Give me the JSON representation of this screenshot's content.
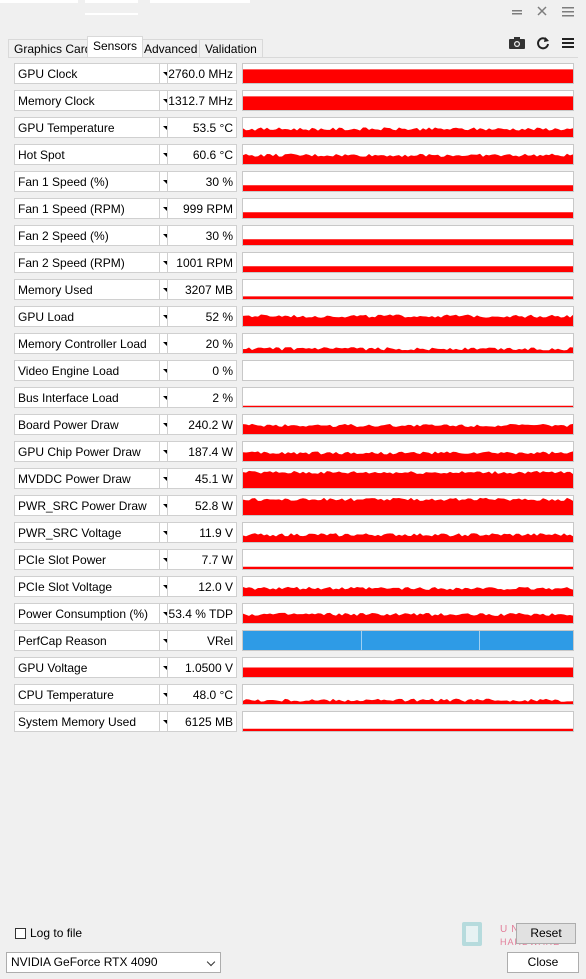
{
  "window": {
    "icons": [
      "minimize-icon",
      "close-icon",
      "menu-icon"
    ]
  },
  "tabs": [
    {
      "label": "Graphics Card",
      "active": false
    },
    {
      "label": "Sensors",
      "active": true
    },
    {
      "label": "Advanced",
      "active": false
    },
    {
      "label": "Validation",
      "active": false
    }
  ],
  "toolbar": {
    "icons": [
      "camera-icon",
      "refresh-icon",
      "hamburger-menu-icon"
    ]
  },
  "colors": {
    "graph_line": "#ff0000",
    "perfcap_fill": "#2e9be6"
  },
  "sensors": [
    {
      "name": "GPU Clock",
      "value": "2760.0 MHz",
      "level": 0.72,
      "style": "solid"
    },
    {
      "name": "Memory Clock",
      "value": "1312.7 MHz",
      "level": 0.72,
      "style": "solid"
    },
    {
      "name": "GPU Temperature",
      "value": "53.5 °C",
      "level": 0.42,
      "style": "noisy"
    },
    {
      "name": "Hot Spot",
      "value": "60.6 °C",
      "level": 0.46,
      "style": "noisy"
    },
    {
      "name": "Fan 1 Speed (%)",
      "value": "30 %",
      "level": 0.3,
      "style": "solid"
    },
    {
      "name": "Fan 1 Speed (RPM)",
      "value": "999 RPM",
      "level": 0.3,
      "style": "solid"
    },
    {
      "name": "Fan 2 Speed (%)",
      "value": "30 %",
      "level": 0.3,
      "style": "solid"
    },
    {
      "name": "Fan 2 Speed (RPM)",
      "value": "1001 RPM",
      "level": 0.3,
      "style": "solid"
    },
    {
      "name": "Memory Used",
      "value": "3207 MB",
      "level": 0.14,
      "style": "solid"
    },
    {
      "name": "GPU Load",
      "value": "52 %",
      "level": 0.52,
      "style": "noisy"
    },
    {
      "name": "Memory Controller Load",
      "value": "20 %",
      "level": 0.22,
      "style": "noisy"
    },
    {
      "name": "Video Engine Load",
      "value": "0 %",
      "level": 0.0,
      "style": "empty"
    },
    {
      "name": "Bus Interface Load",
      "value": "2 %",
      "level": 0.03,
      "style": "flat"
    },
    {
      "name": "Board Power Draw",
      "value": "240.2 W",
      "level": 0.45,
      "style": "noisy"
    },
    {
      "name": "GPU Chip Power Draw",
      "value": "187.4 W",
      "level": 0.42,
      "style": "noisy"
    },
    {
      "name": "MVDDC Power Draw",
      "value": "45.1 W",
      "level": 0.82,
      "style": "noisy"
    },
    {
      "name": "PWR_SRC Power Draw",
      "value": "52.8 W",
      "level": 0.82,
      "style": "noisy"
    },
    {
      "name": "PWR_SRC Voltage",
      "value": "11.9 V",
      "level": 0.38,
      "style": "noisy"
    },
    {
      "name": "PCIe Slot Power",
      "value": "7.7 W",
      "level": 0.12,
      "style": "flat"
    },
    {
      "name": "PCIe Slot Voltage",
      "value": "12.0 V",
      "level": 0.4,
      "style": "noisy"
    },
    {
      "name": "Power Consumption (%)",
      "value": "53.4 % TDP",
      "level": 0.45,
      "style": "noisy"
    },
    {
      "name": "PerfCap Reason",
      "value": "VRel",
      "level": 1.0,
      "style": "perfcap"
    },
    {
      "name": "GPU Voltage",
      "value": "1.0500 V",
      "level": 0.5,
      "style": "solid"
    },
    {
      "name": "CPU Temperature",
      "value": "48.0 °C",
      "level": 0.2,
      "style": "noisy"
    },
    {
      "name": "System Memory Used",
      "value": "6125 MB",
      "level": 0.12,
      "style": "flat"
    }
  ],
  "footer": {
    "log_to_file_label": "Log to file",
    "log_to_file_checked": false,
    "reset_label": "Reset",
    "gpu_select_value": "NVIDIA GeForce RTX 4090",
    "close_label": "Close"
  }
}
